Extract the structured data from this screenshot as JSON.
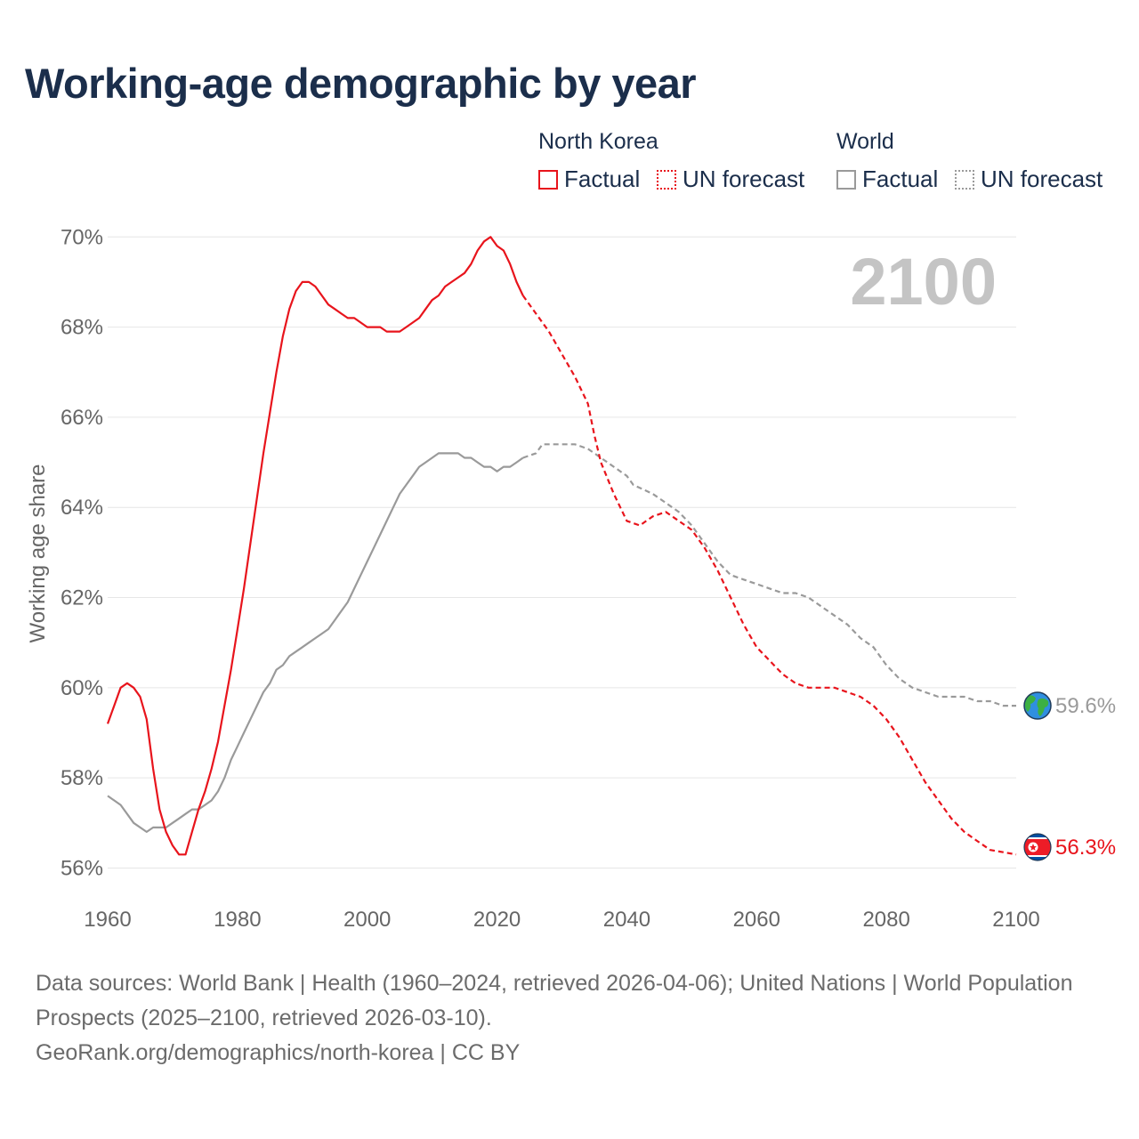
{
  "chart_data": {
    "type": "line",
    "title": "Working-age demographic by year",
    "ylabel": "Working age share",
    "xlabel": "",
    "xlim": [
      1960,
      2100
    ],
    "ylim": [
      55.2,
      70.4
    ],
    "x_ticks": [
      1960,
      1980,
      2000,
      2020,
      2040,
      2060,
      2080,
      2100
    ],
    "x_tick_labels": [
      "1960",
      "1980",
      "2000",
      "2020",
      "2040",
      "2060",
      "2080",
      "2100"
    ],
    "y_ticks": [
      56,
      58,
      60,
      62,
      64,
      66,
      68,
      70
    ],
    "y_tick_labels": [
      "56%",
      "58%",
      "60%",
      "62%",
      "64%",
      "66%",
      "68%",
      "70%"
    ],
    "current_year": "2100",
    "legend": {
      "groups": [
        {
          "title": "North Korea",
          "factual": "Factual",
          "forecast": "UN forecast"
        },
        {
          "title": "World",
          "factual": "Factual",
          "forecast": "UN forecast"
        }
      ]
    },
    "series": [
      {
        "name": "North Korea",
        "color": "#e8141c",
        "end_label": "56.3%",
        "flag_icon": "north-korea-flag-icon",
        "factual": [
          [
            1960,
            59.2
          ],
          [
            1961,
            59.6
          ],
          [
            1962,
            60.0
          ],
          [
            1963,
            60.1
          ],
          [
            1964,
            60.0
          ],
          [
            1965,
            59.8
          ],
          [
            1966,
            59.3
          ],
          [
            1967,
            58.2
          ],
          [
            1968,
            57.3
          ],
          [
            1969,
            56.8
          ],
          [
            1970,
            56.5
          ],
          [
            1971,
            56.3
          ],
          [
            1972,
            56.3
          ],
          [
            1973,
            56.8
          ],
          [
            1974,
            57.3
          ],
          [
            1975,
            57.7
          ],
          [
            1976,
            58.2
          ],
          [
            1977,
            58.8
          ],
          [
            1978,
            59.6
          ],
          [
            1979,
            60.4
          ],
          [
            1980,
            61.3
          ],
          [
            1981,
            62.2
          ],
          [
            1982,
            63.2
          ],
          [
            1983,
            64.2
          ],
          [
            1984,
            65.2
          ],
          [
            1985,
            66.1
          ],
          [
            1986,
            67.0
          ],
          [
            1987,
            67.8
          ],
          [
            1988,
            68.4
          ],
          [
            1989,
            68.8
          ],
          [
            1990,
            69.0
          ],
          [
            1991,
            69.0
          ],
          [
            1992,
            68.9
          ],
          [
            1993,
            68.7
          ],
          [
            1994,
            68.5
          ],
          [
            1995,
            68.4
          ],
          [
            1996,
            68.3
          ],
          [
            1997,
            68.2
          ],
          [
            1998,
            68.2
          ],
          [
            1999,
            68.1
          ],
          [
            2000,
            68.0
          ],
          [
            2001,
            68.0
          ],
          [
            2002,
            68.0
          ],
          [
            2003,
            67.9
          ],
          [
            2004,
            67.9
          ],
          [
            2005,
            67.9
          ],
          [
            2006,
            68.0
          ],
          [
            2007,
            68.1
          ],
          [
            2008,
            68.2
          ],
          [
            2009,
            68.4
          ],
          [
            2010,
            68.6
          ],
          [
            2011,
            68.7
          ],
          [
            2012,
            68.9
          ],
          [
            2013,
            69.0
          ],
          [
            2014,
            69.1
          ],
          [
            2015,
            69.2
          ],
          [
            2016,
            69.4
          ],
          [
            2017,
            69.7
          ],
          [
            2018,
            69.9
          ],
          [
            2019,
            70.0
          ],
          [
            2020,
            69.8
          ],
          [
            2021,
            69.7
          ],
          [
            2022,
            69.4
          ],
          [
            2023,
            69.0
          ],
          [
            2024,
            68.7
          ]
        ],
        "forecast": [
          [
            2024,
            68.7
          ],
          [
            2026,
            68.3
          ],
          [
            2028,
            67.9
          ],
          [
            2030,
            67.4
          ],
          [
            2032,
            66.9
          ],
          [
            2034,
            66.3
          ],
          [
            2035,
            65.6
          ],
          [
            2036,
            65.0
          ],
          [
            2038,
            64.3
          ],
          [
            2040,
            63.7
          ],
          [
            2042,
            63.6
          ],
          [
            2044,
            63.8
          ],
          [
            2046,
            63.9
          ],
          [
            2048,
            63.7
          ],
          [
            2050,
            63.5
          ],
          [
            2052,
            63.1
          ],
          [
            2054,
            62.6
          ],
          [
            2056,
            62.0
          ],
          [
            2058,
            61.4
          ],
          [
            2060,
            60.9
          ],
          [
            2062,
            60.6
          ],
          [
            2064,
            60.3
          ],
          [
            2066,
            60.1
          ],
          [
            2068,
            60.0
          ],
          [
            2070,
            60.0
          ],
          [
            2072,
            60.0
          ],
          [
            2074,
            59.9
          ],
          [
            2076,
            59.8
          ],
          [
            2078,
            59.6
          ],
          [
            2080,
            59.3
          ],
          [
            2082,
            58.9
          ],
          [
            2084,
            58.4
          ],
          [
            2086,
            57.9
          ],
          [
            2088,
            57.5
          ],
          [
            2090,
            57.1
          ],
          [
            2092,
            56.8
          ],
          [
            2094,
            56.6
          ],
          [
            2096,
            56.4
          ],
          [
            2098,
            56.35
          ],
          [
            2100,
            56.3
          ]
        ]
      },
      {
        "name": "World",
        "color": "#9a9a9a",
        "end_label": "59.6%",
        "flag_icon": "globe-icon",
        "factual": [
          [
            1960,
            57.6
          ],
          [
            1962,
            57.4
          ],
          [
            1964,
            57.0
          ],
          [
            1966,
            56.8
          ],
          [
            1967,
            56.9
          ],
          [
            1968,
            56.9
          ],
          [
            1969,
            56.9
          ],
          [
            1970,
            57.0
          ],
          [
            1971,
            57.1
          ],
          [
            1972,
            57.2
          ],
          [
            1973,
            57.3
          ],
          [
            1974,
            57.3
          ],
          [
            1975,
            57.4
          ],
          [
            1976,
            57.5
          ],
          [
            1977,
            57.7
          ],
          [
            1978,
            58.0
          ],
          [
            1979,
            58.4
          ],
          [
            1980,
            58.7
          ],
          [
            1981,
            59.0
          ],
          [
            1982,
            59.3
          ],
          [
            1983,
            59.6
          ],
          [
            1984,
            59.9
          ],
          [
            1985,
            60.1
          ],
          [
            1986,
            60.4
          ],
          [
            1987,
            60.5
          ],
          [
            1988,
            60.7
          ],
          [
            1989,
            60.8
          ],
          [
            1990,
            60.9
          ],
          [
            1991,
            61.0
          ],
          [
            1992,
            61.1
          ],
          [
            1993,
            61.2
          ],
          [
            1994,
            61.3
          ],
          [
            1995,
            61.5
          ],
          [
            1996,
            61.7
          ],
          [
            1997,
            61.9
          ],
          [
            1998,
            62.2
          ],
          [
            1999,
            62.5
          ],
          [
            2000,
            62.8
          ],
          [
            2001,
            63.1
          ],
          [
            2002,
            63.4
          ],
          [
            2003,
            63.7
          ],
          [
            2004,
            64.0
          ],
          [
            2005,
            64.3
          ],
          [
            2006,
            64.5
          ],
          [
            2007,
            64.7
          ],
          [
            2008,
            64.9
          ],
          [
            2009,
            65.0
          ],
          [
            2010,
            65.1
          ],
          [
            2011,
            65.2
          ],
          [
            2012,
            65.2
          ],
          [
            2013,
            65.2
          ],
          [
            2014,
            65.2
          ],
          [
            2015,
            65.1
          ],
          [
            2016,
            65.1
          ],
          [
            2017,
            65.0
          ],
          [
            2018,
            64.9
          ],
          [
            2019,
            64.9
          ],
          [
            2020,
            64.8
          ],
          [
            2021,
            64.9
          ],
          [
            2022,
            64.9
          ],
          [
            2023,
            65.0
          ],
          [
            2024,
            65.1
          ]
        ],
        "forecast": [
          [
            2024,
            65.1
          ],
          [
            2026,
            65.2
          ],
          [
            2027,
            65.4
          ],
          [
            2028,
            65.4
          ],
          [
            2030,
            65.4
          ],
          [
            2032,
            65.4
          ],
          [
            2034,
            65.3
          ],
          [
            2036,
            65.1
          ],
          [
            2038,
            64.9
          ],
          [
            2040,
            64.7
          ],
          [
            2041,
            64.5
          ],
          [
            2044,
            64.3
          ],
          [
            2046,
            64.1
          ],
          [
            2048,
            63.9
          ],
          [
            2050,
            63.6
          ],
          [
            2052,
            63.2
          ],
          [
            2054,
            62.8
          ],
          [
            2056,
            62.5
          ],
          [
            2058,
            62.4
          ],
          [
            2060,
            62.3
          ],
          [
            2062,
            62.2
          ],
          [
            2064,
            62.1
          ],
          [
            2066,
            62.1
          ],
          [
            2068,
            62.0
          ],
          [
            2070,
            61.8
          ],
          [
            2072,
            61.6
          ],
          [
            2074,
            61.4
          ],
          [
            2076,
            61.1
          ],
          [
            2078,
            60.9
          ],
          [
            2080,
            60.5
          ],
          [
            2082,
            60.2
          ],
          [
            2084,
            60.0
          ],
          [
            2086,
            59.9
          ],
          [
            2088,
            59.8
          ],
          [
            2090,
            59.8
          ],
          [
            2092,
            59.8
          ],
          [
            2094,
            59.7
          ],
          [
            2096,
            59.7
          ],
          [
            2098,
            59.6
          ],
          [
            2100,
            59.6
          ]
        ]
      }
    ]
  },
  "footer": {
    "line1": "Data sources: World Bank | Health (1960–2024, retrieved 2026-04-06); United Nations | World Population Prospects (2025–2100, retrieved 2026-03-10).",
    "line2": "GeoRank.org/demographics/north-korea | CC BY"
  }
}
